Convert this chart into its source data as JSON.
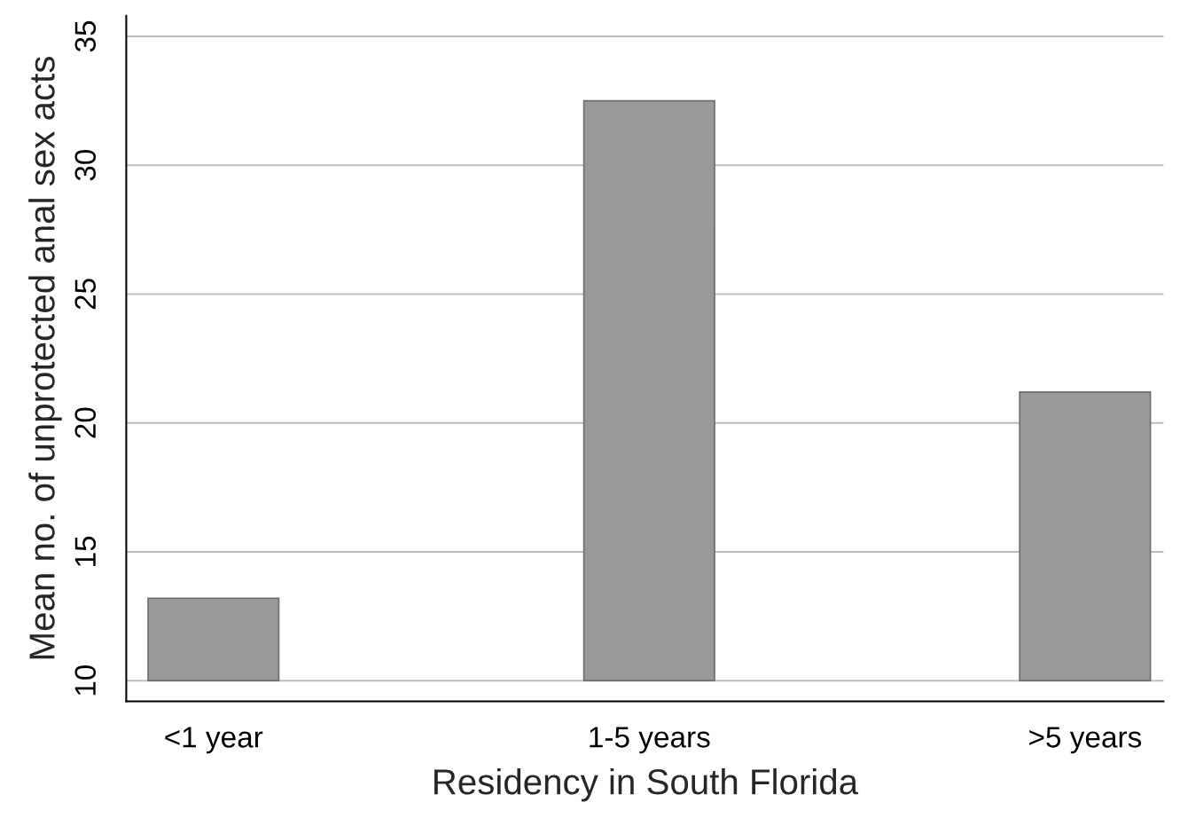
{
  "chart_data": {
    "type": "bar",
    "xlabel": "Residency in South Florida",
    "ylabel": "Mean no. of unprotected anal sex acts",
    "categories": [
      "<1 year",
      "1-5 years",
      ">5 years"
    ],
    "base": [
      10,
      10,
      10
    ],
    "values": [
      3.2,
      22.5,
      11.2
    ],
    "color": "#999999",
    "ylim": [
      9.2,
      35.8
    ],
    "yticks": [
      10,
      15,
      20,
      25,
      30,
      35
    ],
    "grid": "y"
  }
}
